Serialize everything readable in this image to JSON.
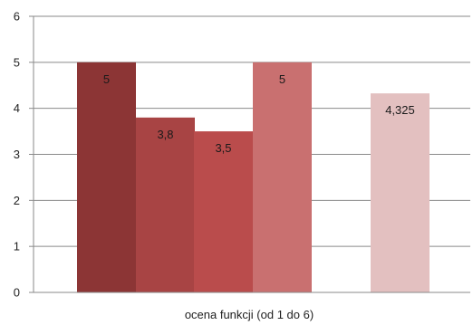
{
  "chart_data": {
    "type": "bar",
    "title": "",
    "xlabel": "ocena funkcji (od 1 do 6)",
    "ylabel": "",
    "ylim": [
      0,
      6
    ],
    "yticks": [
      "0",
      "1",
      "2",
      "3",
      "4",
      "5",
      "6"
    ],
    "grid": true,
    "legend": "none",
    "bars": [
      {
        "value": 5,
        "label": "5",
        "color": "#8c3535"
      },
      {
        "value": 3.8,
        "label": "3,8",
        "color": "#a84444"
      },
      {
        "value": 3.5,
        "label": "3,5",
        "color": "#ba4c4c"
      },
      {
        "value": 5,
        "label": "5",
        "color": "#c97070"
      },
      {
        "value": 4.325,
        "label": "4,325",
        "color": "#e3c0c0"
      }
    ]
  }
}
